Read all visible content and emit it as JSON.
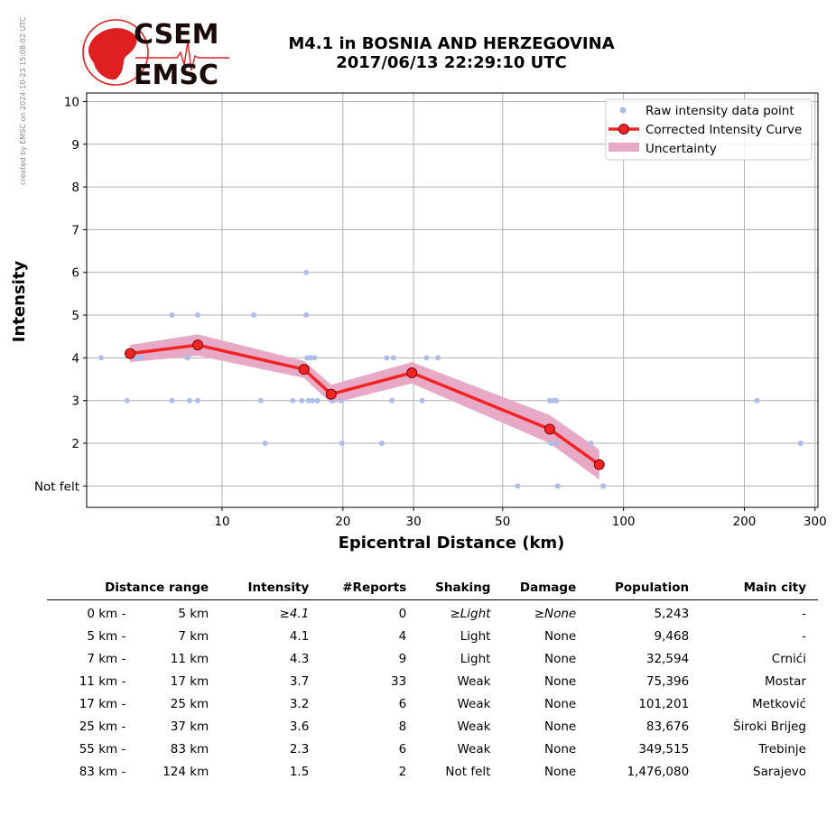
{
  "credit": "created by EMSC on 2024-10-23 15:08:02 UTC",
  "logo": {
    "top_text": "CSEM",
    "bottom_text": "EMSC",
    "color": "#e02020"
  },
  "header": {
    "title_line1": "M4.1 in BOSNIA AND HERZEGOVINA",
    "title_line2": "2017/06/13 22:29:10 UTC"
  },
  "chart_data": {
    "type": "scatter+line",
    "xlabel": "Epicentral Distance (km)",
    "ylabel": "Intensity",
    "xscale": "log",
    "xlim": [
      4.6,
      305
    ],
    "ylim": [
      0.5,
      10.2
    ],
    "xticks": [
      10,
      20,
      30,
      50,
      100,
      200,
      300
    ],
    "yticks": [
      {
        "value": 1,
        "label": "Not felt"
      },
      {
        "value": 2,
        "label": "2"
      },
      {
        "value": 3,
        "label": "3"
      },
      {
        "value": 4,
        "label": "4"
      },
      {
        "value": 5,
        "label": "5"
      },
      {
        "value": 6,
        "label": "6"
      },
      {
        "value": 7,
        "label": "7"
      },
      {
        "value": 8,
        "label": "8"
      },
      {
        "value": 9,
        "label": "9"
      },
      {
        "value": 10,
        "label": "10"
      }
    ],
    "grid": true,
    "legend_position": "top-right",
    "legend": [
      "Raw intensity data point",
      "Corrected Intensity Curve",
      "Uncertainty"
    ],
    "colors": {
      "raw": "#aebde8",
      "curve": "#f22424",
      "marker_edge": "#7a0000",
      "band": "#e8a9c6"
    },
    "raw_points": [
      [
        5.0,
        4
      ],
      [
        5.8,
        3
      ],
      [
        6.1,
        4
      ],
      [
        6.2,
        4
      ],
      [
        6.3,
        4
      ],
      [
        7.5,
        5
      ],
      [
        7.5,
        3
      ],
      [
        8.2,
        4
      ],
      [
        8.3,
        3
      ],
      [
        8.7,
        5
      ],
      [
        8.7,
        3
      ],
      [
        12.0,
        5
      ],
      [
        12.5,
        3
      ],
      [
        12.8,
        2
      ],
      [
        15.0,
        3
      ],
      [
        15.8,
        3
      ],
      [
        16.2,
        6
      ],
      [
        16.2,
        5
      ],
      [
        16.3,
        4
      ],
      [
        16.4,
        3
      ],
      [
        16.6,
        4
      ],
      [
        16.8,
        3
      ],
      [
        17.0,
        4
      ],
      [
        17.3,
        3
      ],
      [
        18.8,
        3
      ],
      [
        19.8,
        3
      ],
      [
        19.9,
        2
      ],
      [
        25.0,
        2
      ],
      [
        25.7,
        4
      ],
      [
        26.5,
        3
      ],
      [
        26.7,
        4
      ],
      [
        31.5,
        3
      ],
      [
        32.3,
        4
      ],
      [
        34.5,
        4
      ],
      [
        54.5,
        1
      ],
      [
        65.5,
        3
      ],
      [
        66.0,
        2
      ],
      [
        67.0,
        3
      ],
      [
        68.0,
        3
      ],
      [
        68.3,
        2
      ],
      [
        68.5,
        1
      ],
      [
        83.0,
        2
      ],
      [
        89.0,
        1
      ],
      [
        215.0,
        3
      ],
      [
        276.0,
        2
      ]
    ],
    "curve": [
      [
        5.9,
        4.1
      ],
      [
        8.7,
        4.3
      ],
      [
        16.0,
        3.73
      ],
      [
        18.7,
        3.15
      ],
      [
        29.7,
        3.65
      ],
      [
        65.5,
        2.33
      ],
      [
        87.0,
        1.5
      ]
    ],
    "uncertainty": [
      [
        5.9,
        0.2
      ],
      [
        8.7,
        0.25
      ],
      [
        16.0,
        0.2
      ],
      [
        18.7,
        0.22
      ],
      [
        29.7,
        0.25
      ],
      [
        65.5,
        0.33
      ],
      [
        87.0,
        0.35
      ]
    ]
  },
  "table": {
    "headers": [
      "Distance range",
      "Intensity",
      "#Reports",
      "Shaking",
      "Damage",
      "Population",
      "Main city"
    ],
    "rows": [
      {
        "dmin": "0 km -",
        "dmax": "5 km",
        "intensity": "≥4.1",
        "reports": "0",
        "shaking": "≥Light",
        "damage": "≥None",
        "population": "5,243",
        "city": "-",
        "italic": true
      },
      {
        "dmin": "5 km -",
        "dmax": "7 km",
        "intensity": "4.1",
        "reports": "4",
        "shaking": "Light",
        "damage": "None",
        "population": "9,468",
        "city": "-"
      },
      {
        "dmin": "7 km -",
        "dmax": "11 km",
        "intensity": "4.3",
        "reports": "9",
        "shaking": "Light",
        "damage": "None",
        "population": "32,594",
        "city": "Crnići"
      },
      {
        "dmin": "11 km -",
        "dmax": "17 km",
        "intensity": "3.7",
        "reports": "33",
        "shaking": "Weak",
        "damage": "None",
        "population": "75,396",
        "city": "Mostar"
      },
      {
        "dmin": "17 km -",
        "dmax": "25 km",
        "intensity": "3.2",
        "reports": "6",
        "shaking": "Weak",
        "damage": "None",
        "population": "101,201",
        "city": "Metković"
      },
      {
        "dmin": "25 km -",
        "dmax": "37 km",
        "intensity": "3.6",
        "reports": "8",
        "shaking": "Weak",
        "damage": "None",
        "population": "83,676",
        "city": "Široki Brijeg"
      },
      {
        "dmin": "55 km -",
        "dmax": "83 km",
        "intensity": "2.3",
        "reports": "6",
        "shaking": "Weak",
        "damage": "None",
        "population": "349,515",
        "city": "Trebinje"
      },
      {
        "dmin": "83 km -",
        "dmax": "124 km",
        "intensity": "1.5",
        "reports": "2",
        "shaking": "Not felt",
        "damage": "None",
        "population": "1,476,080",
        "city": "Sarajevo"
      }
    ]
  }
}
